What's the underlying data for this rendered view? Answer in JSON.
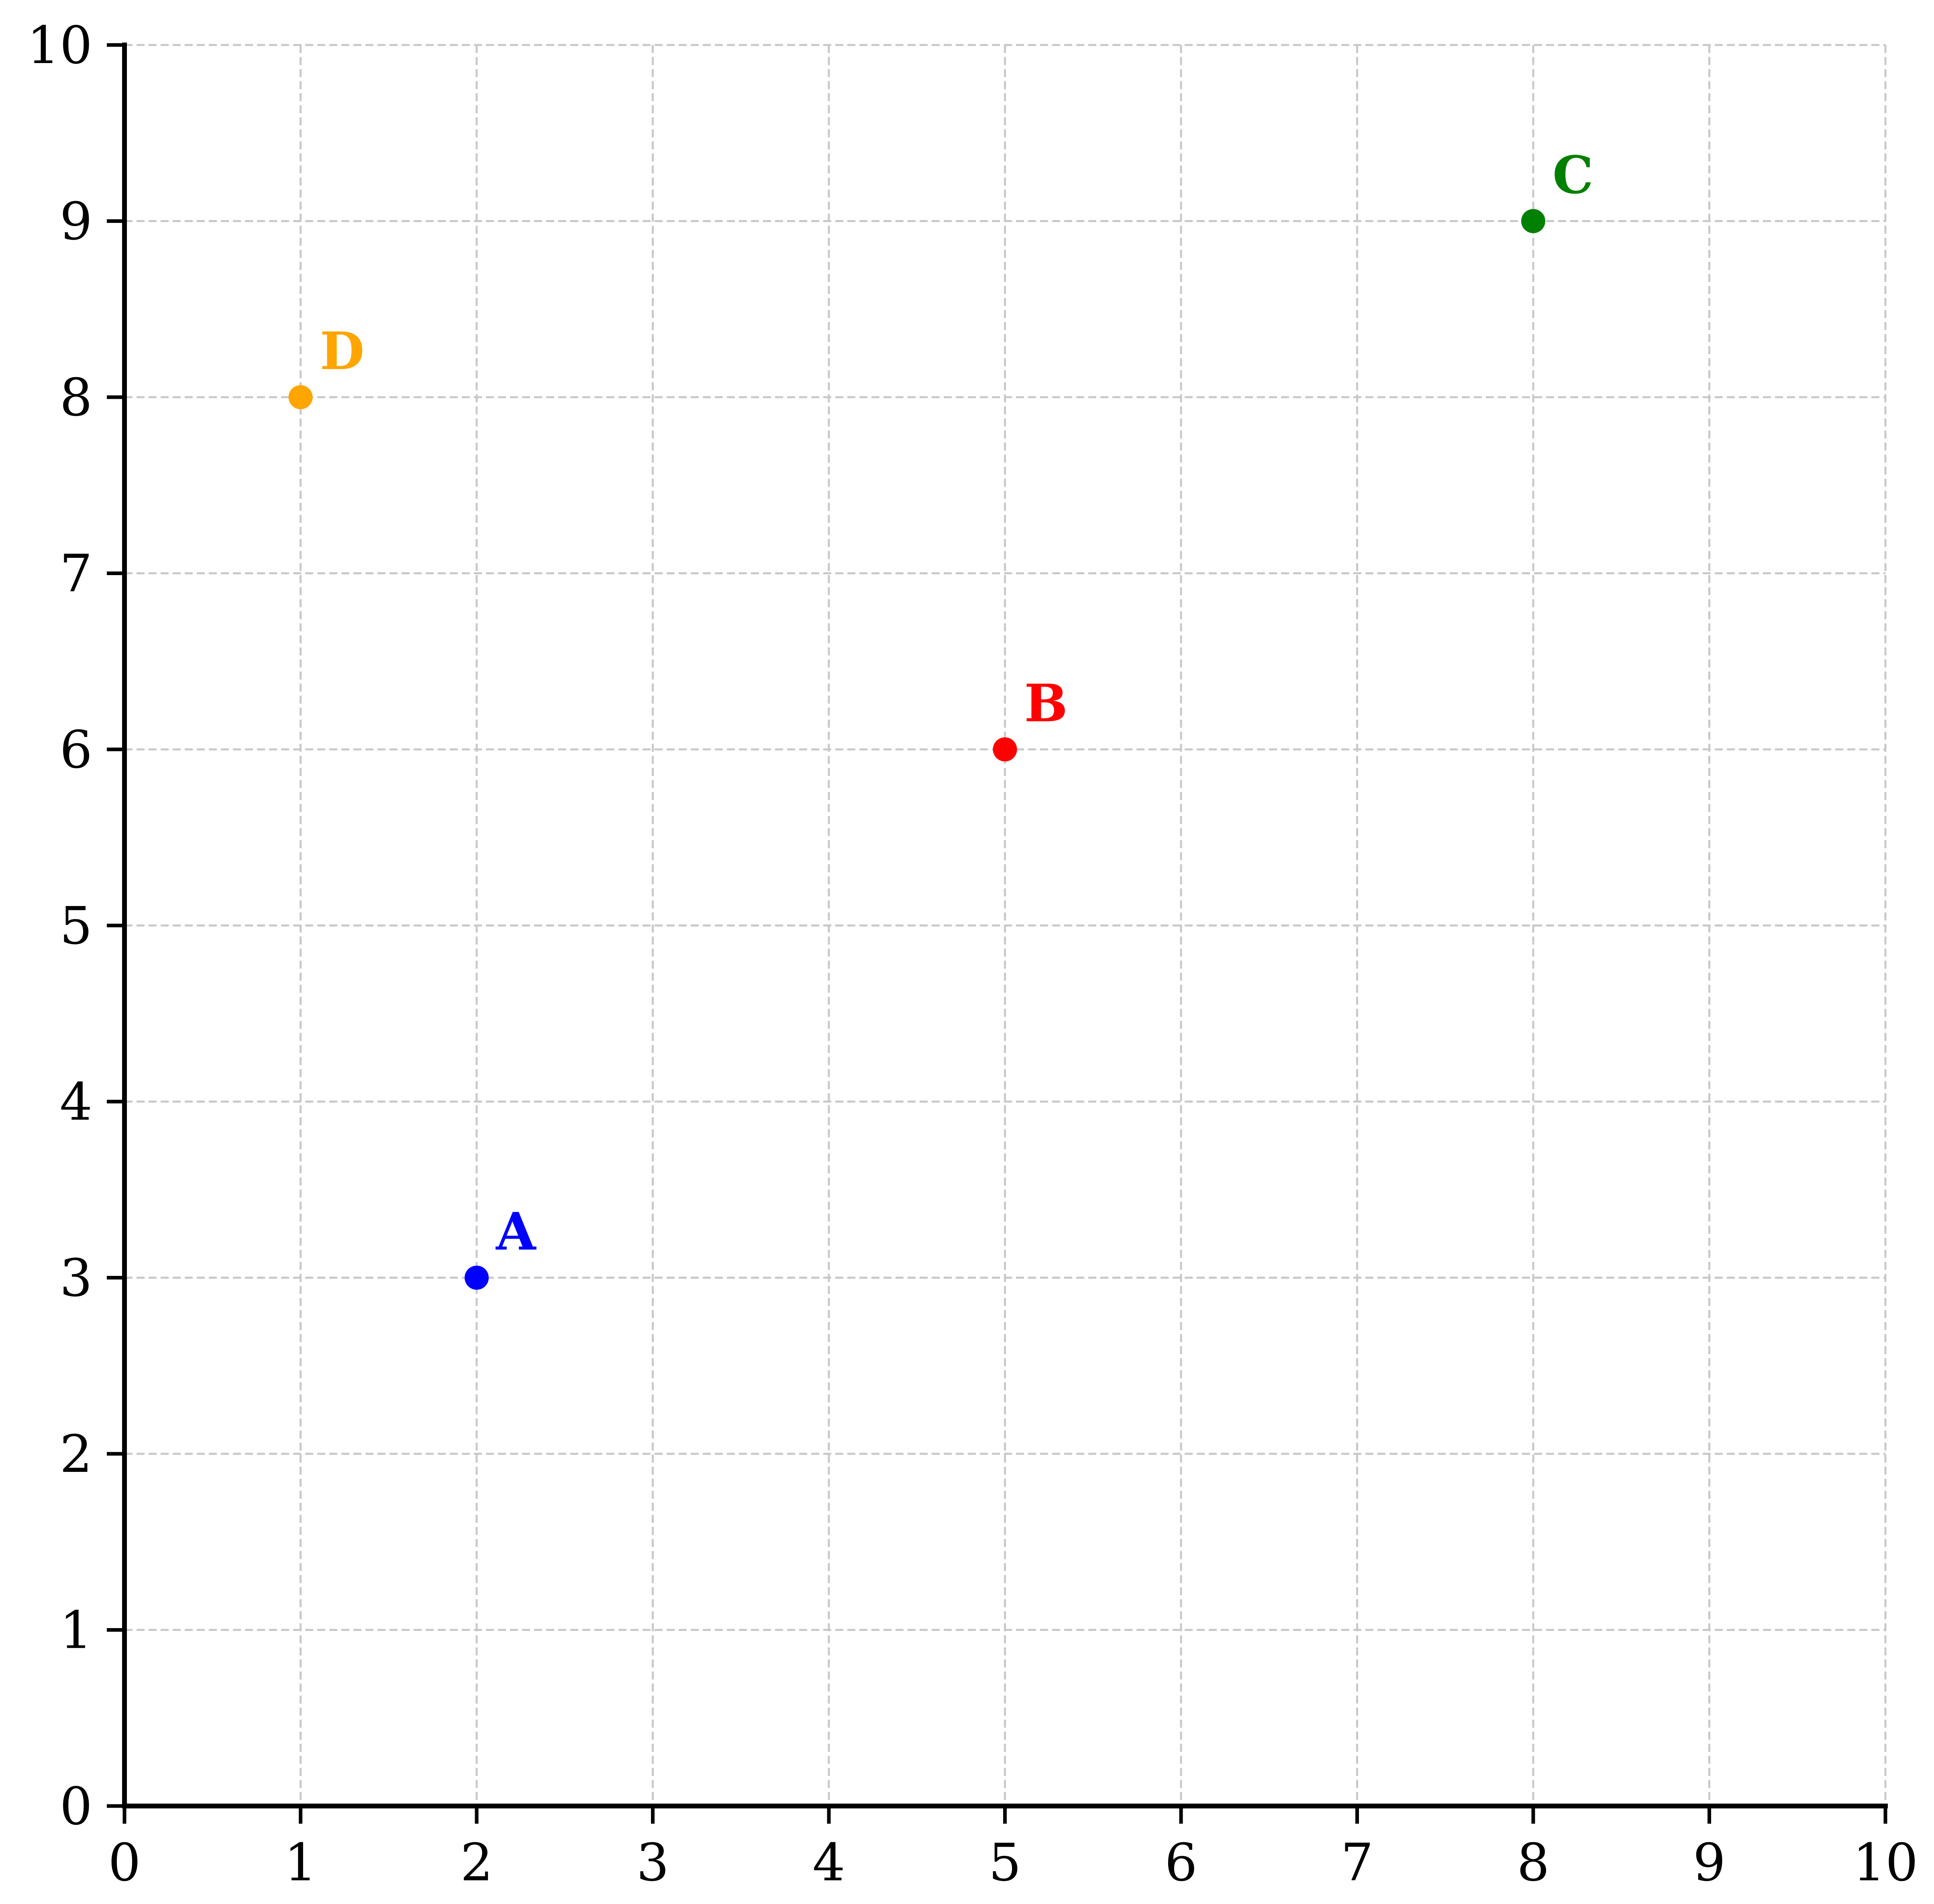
{
  "chart_data": {
    "type": "scatter",
    "title": "",
    "xlabel": "",
    "ylabel": "",
    "xlim": [
      0,
      10
    ],
    "ylim": [
      0,
      10
    ],
    "x_ticks": [
      0,
      1,
      2,
      3,
      4,
      5,
      6,
      7,
      8,
      9,
      10
    ],
    "y_ticks": [
      0,
      1,
      2,
      3,
      4,
      5,
      6,
      7,
      8,
      9,
      10
    ],
    "x_tick_labels": [
      "0",
      "1",
      "2",
      "3",
      "4",
      "5",
      "6",
      "7",
      "8",
      "9",
      "10"
    ],
    "y_tick_labels": [
      "0",
      "1",
      "2",
      "3",
      "4",
      "5",
      "6",
      "7",
      "8",
      "9",
      "10"
    ],
    "grid": true,
    "grid_style": "dashed",
    "grid_color": "#c8c8c8",
    "axis_color": "#000000",
    "points": [
      {
        "label": "A",
        "x": 2,
        "y": 3,
        "color": "#0000ff"
      },
      {
        "label": "B",
        "x": 5,
        "y": 6,
        "color": "#ff0000"
      },
      {
        "label": "C",
        "x": 8,
        "y": 9,
        "color": "#008000"
      },
      {
        "label": "D",
        "x": 1,
        "y": 8,
        "color": "#ffa500"
      }
    ]
  }
}
